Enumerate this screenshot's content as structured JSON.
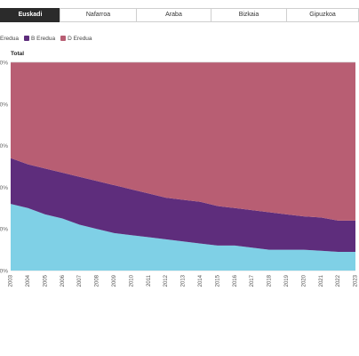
{
  "tabs": [
    {
      "label": "Euskadi",
      "active": true
    },
    {
      "label": "Nafarroa",
      "active": false
    },
    {
      "label": "Araba",
      "active": false
    },
    {
      "label": "Bizkaia",
      "active": false
    },
    {
      "label": "Gipuzkoa",
      "active": false
    }
  ],
  "legend": [
    {
      "label": "Eredua",
      "color": "#7fd0e6"
    },
    {
      "label": "B Eredua",
      "color": "#5e2d7c"
    },
    {
      "label": "D Eredua",
      "color": "#b85e73"
    }
  ],
  "chart_title": "Total",
  "colors": {
    "A": "#7fd0e6",
    "B": "#5e2d7c",
    "D": "#b85e73",
    "grid": "#cccccc"
  },
  "chart_data": {
    "type": "area",
    "stacked": true,
    "percent": true,
    "title": "Total",
    "x": [
      "2003",
      "2004",
      "2005",
      "2006",
      "2007",
      "2008",
      "2009",
      "2010",
      "2011",
      "2012",
      "2013",
      "2014",
      "2015",
      "2016",
      "2017",
      "2018",
      "2019",
      "2020",
      "2021",
      "2022",
      "2023"
    ],
    "series": [
      {
        "name": "Eredua",
        "values": [
          32,
          30,
          27,
          25,
          22,
          20,
          18,
          17,
          16,
          15,
          14,
          13,
          12,
          12,
          11,
          10,
          10,
          10,
          9.5,
          9,
          9
        ]
      },
      {
        "name": "B Eredua",
        "values": [
          22,
          21,
          22,
          22,
          23,
          23,
          23,
          22,
          21,
          20,
          20,
          20,
          19,
          18,
          18,
          18,
          17,
          16,
          16,
          15,
          15
        ]
      },
      {
        "name": "D Eredua",
        "values": [
          46,
          49,
          51,
          53,
          55,
          57,
          59,
          61,
          63,
          65,
          66,
          67,
          69,
          70,
          71,
          72,
          73,
          74,
          74.5,
          76,
          76
        ]
      }
    ],
    "ylim": [
      0,
      100
    ],
    "grid": true
  }
}
